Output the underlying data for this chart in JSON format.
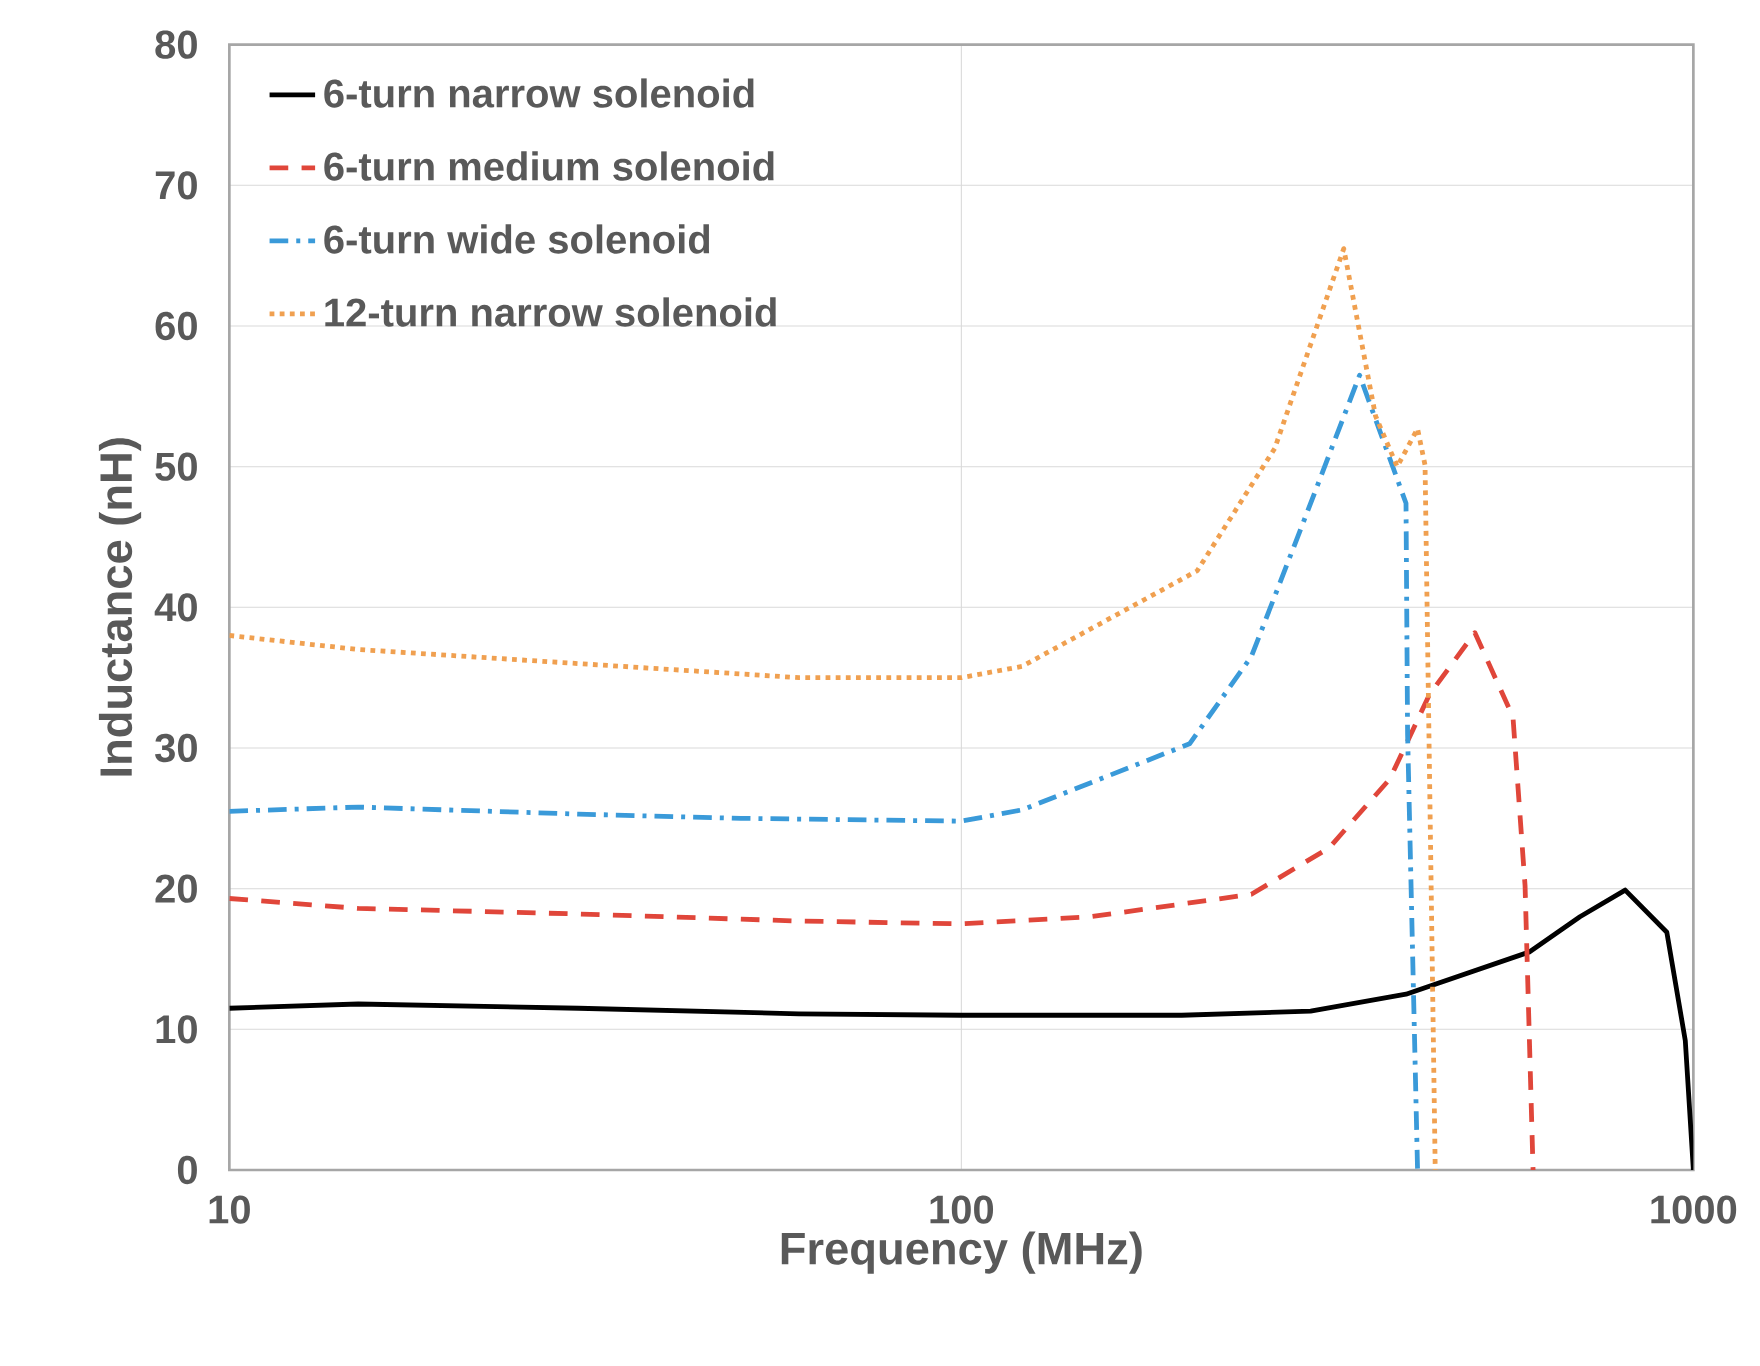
{
  "chart_data": {
    "type": "line",
    "xlabel": "Frequency (MHz)",
    "ylabel": "Inductance (nH)",
    "log": "x",
    "xlim": [
      10,
      1000
    ],
    "xticks": [
      10,
      100,
      1000
    ],
    "ylim": [
      0,
      80
    ],
    "yticks": [
      0,
      10,
      20,
      30,
      40,
      50,
      60,
      70,
      80
    ],
    "grid": true,
    "legend": "top left",
    "marker": "none",
    "series": [
      {
        "name": "6-turn narrow solenoid",
        "color": "#000000",
        "line_style": "solid",
        "x": [
          10,
          15,
          30,
          60,
          100,
          200,
          300,
          405,
          597,
          700,
          807,
          920,
          975,
          1000
        ],
        "values": [
          11.5,
          11.8,
          11.5,
          11.1,
          11,
          11,
          11.3,
          12.5,
          15.5,
          18,
          19.9,
          16.9,
          9.2,
          0
        ]
      },
      {
        "name": "6-turn medium solenoid",
        "color": "#e0463a",
        "line_style": "dashed",
        "x": [
          10,
          15,
          30,
          60,
          100,
          150,
          249,
          318,
          385,
          436,
          503,
          567,
          589,
          604
        ],
        "values": [
          19.3,
          18.6,
          18.2,
          17.7,
          17.5,
          18,
          19.6,
          22.9,
          27.8,
          33.8,
          38.2,
          32.2,
          20.2,
          0
        ]
      },
      {
        "name": "6-turn wide solenoid",
        "color": "#3a9ad9",
        "line_style": "dashdot",
        "x": [
          10,
          15,
          30,
          50,
          100,
          121,
          205,
          249,
          295,
          350,
          405,
          407,
          420
        ],
        "values": [
          25.5,
          25.8,
          25.3,
          25,
          24.8,
          25.6,
          30.3,
          36.5,
          46.4,
          56.5,
          47.4,
          31,
          0
        ]
      },
      {
        "name": "12-turn narrow solenoid",
        "color": "#f0a050",
        "line_style": "dotted",
        "x": [
          10,
          15,
          30,
          60,
          100,
          121,
          210,
          268,
          333,
          368,
          394,
          420,
          430,
          444
        ],
        "values": [
          38,
          37,
          36,
          35,
          35,
          35.8,
          42.6,
          51.3,
          65.5,
          53.6,
          50,
          52.7,
          50.1,
          0
        ]
      }
    ]
  }
}
